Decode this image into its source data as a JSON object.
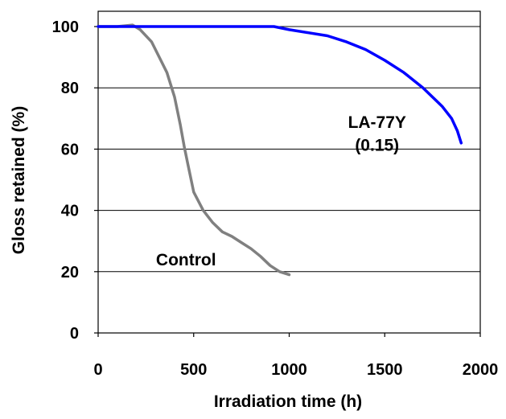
{
  "chart_data": {
    "type": "line",
    "title": "",
    "xlabel": "Irradiation time (h)",
    "ylabel": "Gloss retained (%)",
    "xlim": [
      0,
      2000
    ],
    "ylim": [
      0,
      105
    ],
    "x_ticks": [
      "0",
      "500",
      "1000",
      "1500",
      "2000"
    ],
    "y_ticks": [
      "0",
      "20",
      "40",
      "60",
      "80",
      "100"
    ],
    "grid": "horizontal",
    "legend": "none",
    "series": [
      {
        "name": "Control",
        "color": "#808080",
        "points": [
          [
            0,
            100
          ],
          [
            100,
            100
          ],
          [
            180,
            100.5
          ],
          [
            220,
            99
          ],
          [
            280,
            95
          ],
          [
            320,
            90
          ],
          [
            360,
            85
          ],
          [
            400,
            77
          ],
          [
            430,
            68
          ],
          [
            450,
            61
          ],
          [
            470,
            55
          ],
          [
            500,
            46
          ],
          [
            550,
            40
          ],
          [
            600,
            36
          ],
          [
            650,
            33
          ],
          [
            700,
            31.5
          ],
          [
            750,
            29.5
          ],
          [
            800,
            27.5
          ],
          [
            850,
            25
          ],
          [
            900,
            22
          ],
          [
            950,
            20
          ],
          [
            1000,
            19
          ]
        ]
      },
      {
        "name": "LA-77Y (0.15)",
        "color": "#0000ff",
        "points": [
          [
            0,
            100
          ],
          [
            500,
            100
          ],
          [
            920,
            100
          ],
          [
            1000,
            99
          ],
          [
            1100,
            98
          ],
          [
            1200,
            97
          ],
          [
            1300,
            95
          ],
          [
            1400,
            92.5
          ],
          [
            1500,
            89
          ],
          [
            1600,
            85
          ],
          [
            1700,
            80
          ],
          [
            1800,
            74
          ],
          [
            1850,
            70
          ],
          [
            1880,
            66
          ],
          [
            1900,
            62
          ]
        ]
      }
    ],
    "annotations": [
      {
        "text": "LA-77Y",
        "x": 1460,
        "y": 67
      },
      {
        "text": "(0.15)",
        "x": 1460,
        "y": 59.5
      },
      {
        "text": "Control",
        "x": 460,
        "y": 22
      }
    ]
  }
}
